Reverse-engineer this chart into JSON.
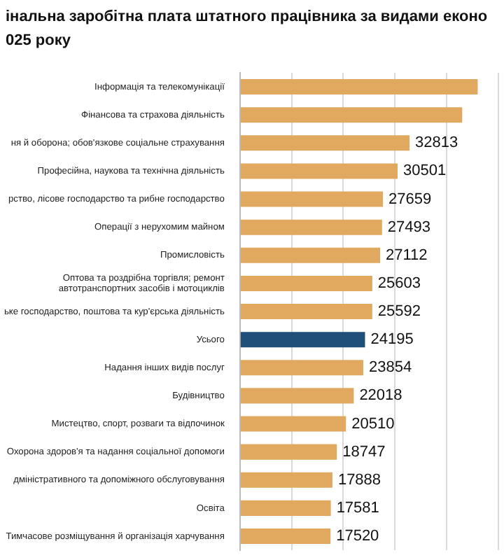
{
  "chart_data": {
    "type": "bar",
    "orientation": "horizontal",
    "title": "інальна заробітна плата штатного працівника за видами еконо\n025 року",
    "categories": [
      "Інформація та телекомунікації",
      "Фінансова та страхова діяльність",
      "ня й оборона; обов'язкове соціальне страхування",
      "Професійна, наукова та технічна діяльність",
      "рство, лісове господарство та рибне господарство",
      "Операції з нерухомим майном",
      "Промисловість",
      "Оптова та роздрібна торгівля; ремонт\nавтотранспортних засобів і мотоциклів",
      "ьке господарство, поштова та кур'єрська діяльність",
      "Усього",
      "Надання інших видів послуг",
      "Будівництво",
      "Мистецтво, спорт, розваги та відпочинок",
      "Охорона здоров'я та надання соціальної допомоги",
      "дміністративного та допоміжного обслуговування",
      "Освіта",
      "Тимчасове розміщування й організація харчування"
    ],
    "values": [
      46000,
      43000,
      32813,
      30501,
      27659,
      27493,
      27112,
      25603,
      25592,
      24195,
      23854,
      22018,
      20510,
      18747,
      17888,
      17581,
      17520
    ],
    "value_labels": [
      null,
      null,
      "32813",
      "30501",
      "27659",
      "27493",
      "27112",
      "25603",
      "25592",
      "24195",
      "23854",
      "22018",
      "20510",
      "18747",
      "17888",
      "17581",
      "17520"
    ],
    "colors": [
      "#e0a95f",
      "#e0a95f",
      "#e0a95f",
      "#e0a95f",
      "#e0a95f",
      "#e0a95f",
      "#e0a95f",
      "#e0a95f",
      "#e0a95f",
      "#1f4e79",
      "#e0a95f",
      "#e0a95f",
      "#e0a95f",
      "#e0a95f",
      "#e0a95f",
      "#e0a95f",
      "#e0a95f"
    ],
    "xlim": [
      0,
      50000
    ],
    "xticks": [
      {
        "value": 0,
        "label": null
      },
      {
        "value": 10000,
        "label": null
      },
      {
        "value": 20000,
        "label": null
      },
      {
        "value": 30000,
        "label": null
      },
      {
        "value": 40000,
        "label": null
      },
      {
        "value": 50000,
        "label": null
      }
    ],
    "grid": "x",
    "tick_labels": false,
    "legend": false
  }
}
